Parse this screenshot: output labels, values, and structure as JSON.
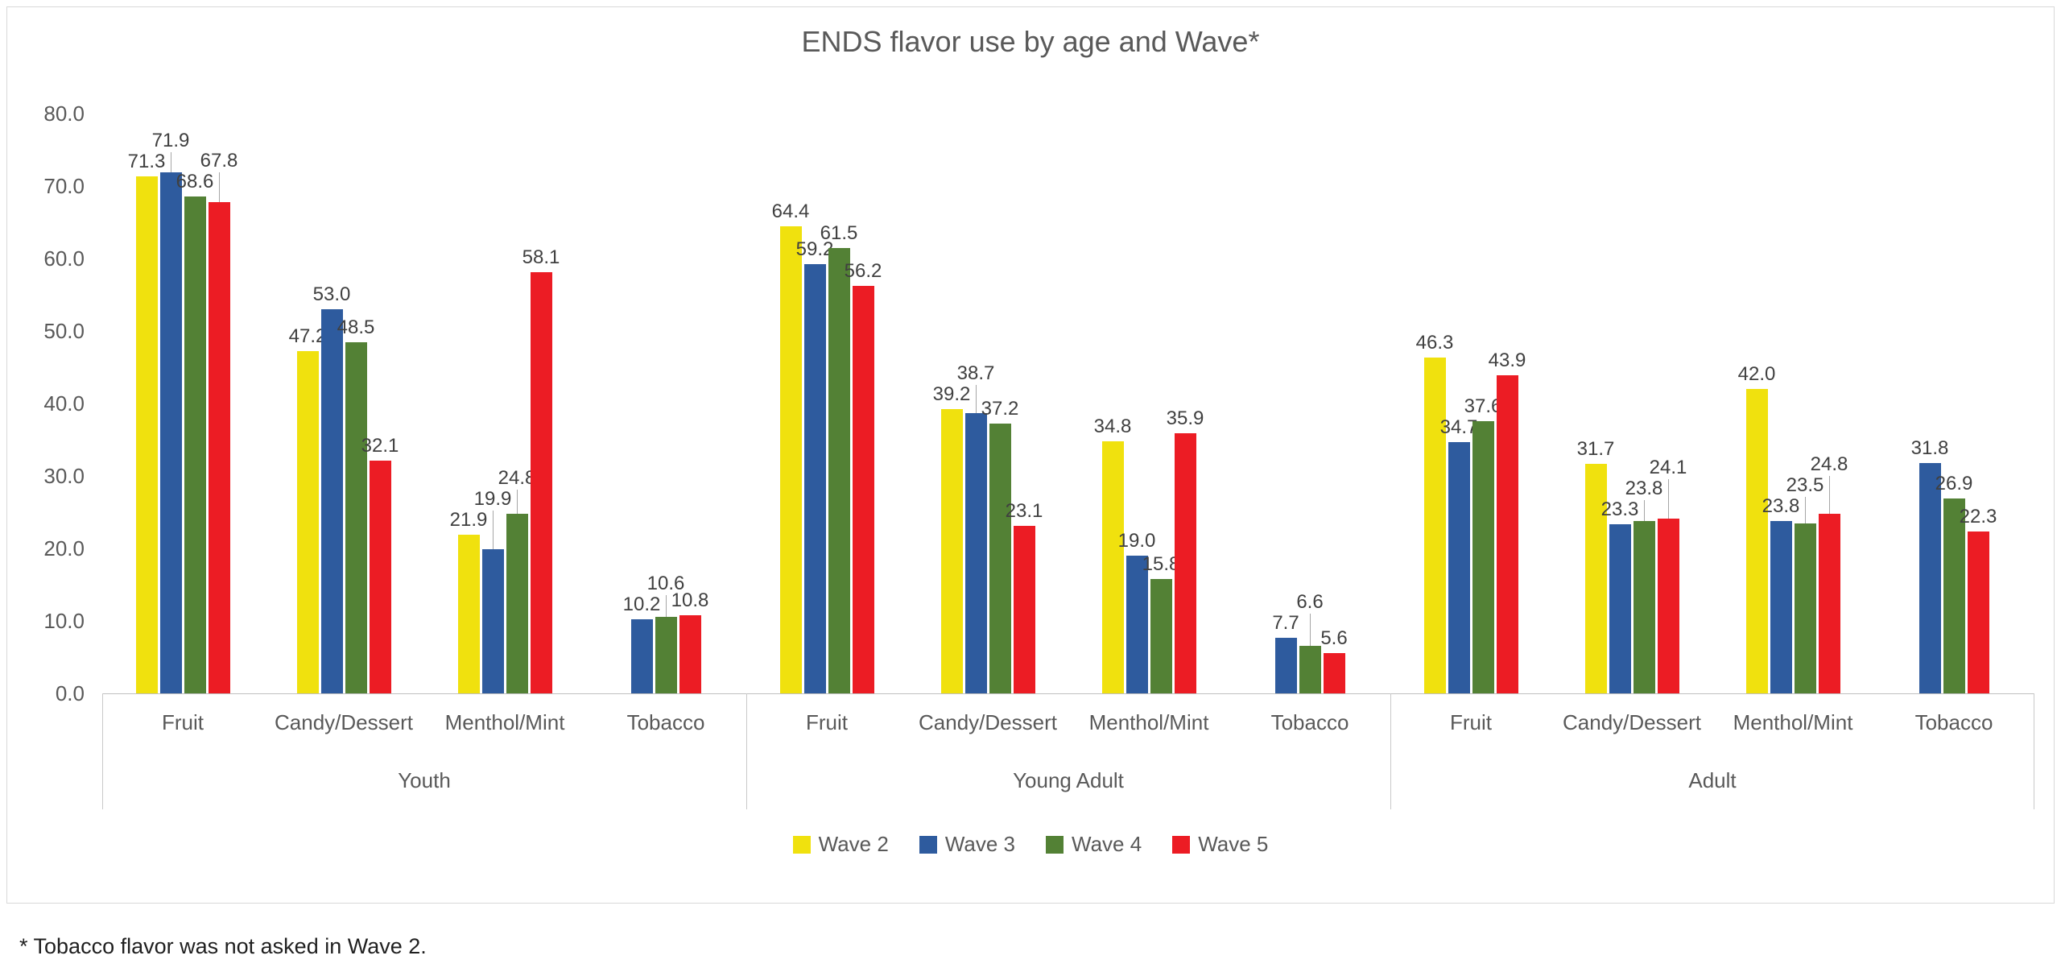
{
  "title": "ENDS flavor use by age and Wave*",
  "footnote": "* Tobacco flavor was not asked in Wave 2.",
  "chart_data": {
    "type": "bar",
    "title": "ENDS flavor use by age and Wave*",
    "ylim": [
      0,
      80
    ],
    "y_tick_labels": [
      "80.0",
      "70.0",
      "60.0",
      "50.0",
      "40.0",
      "30.0",
      "20.0",
      "10.0",
      "0.0"
    ],
    "grid": false,
    "legend_position": "bottom",
    "series": [
      {
        "name": "Wave 2",
        "color": "#F0E10E"
      },
      {
        "name": "Wave 3",
        "color": "#2E5B9E"
      },
      {
        "name": "Wave 4",
        "color": "#538135"
      },
      {
        "name": "Wave 5",
        "color": "#EC1C24"
      }
    ],
    "age_groups": [
      {
        "label": "Youth",
        "categories": [
          {
            "label": "Fruit",
            "values": [
              71.3,
              71.9,
              68.6,
              67.8
            ]
          },
          {
            "label": "Candy/Dessert",
            "values": [
              47.2,
              53.0,
              48.5,
              32.1
            ]
          },
          {
            "label": "Menthol/Mint",
            "values": [
              21.9,
              19.9,
              24.8,
              58.1
            ]
          },
          {
            "label": "Tobacco",
            "values": [
              null,
              10.2,
              10.6,
              10.8
            ]
          }
        ]
      },
      {
        "label": "Young Adult",
        "categories": [
          {
            "label": "Fruit",
            "values": [
              64.4,
              59.2,
              61.5,
              56.2
            ]
          },
          {
            "label": "Candy/Dessert",
            "values": [
              39.2,
              38.7,
              37.2,
              23.1
            ]
          },
          {
            "label": "Menthol/Mint",
            "values": [
              34.8,
              19.0,
              15.8,
              35.9
            ]
          },
          {
            "label": "Tobacco",
            "values": [
              null,
              7.7,
              6.6,
              5.6
            ]
          }
        ]
      },
      {
        "label": "Adult",
        "categories": [
          {
            "label": "Fruit",
            "values": [
              46.3,
              34.7,
              37.6,
              43.9
            ]
          },
          {
            "label": "Candy/Dessert",
            "values": [
              31.7,
              23.3,
              23.8,
              24.1
            ]
          },
          {
            "label": "Menthol/Mint",
            "values": [
              42.0,
              23.8,
              23.5,
              24.8
            ]
          },
          {
            "label": "Tobacco",
            "values": [
              null,
              31.8,
              26.9,
              22.3
            ]
          }
        ]
      }
    ]
  }
}
